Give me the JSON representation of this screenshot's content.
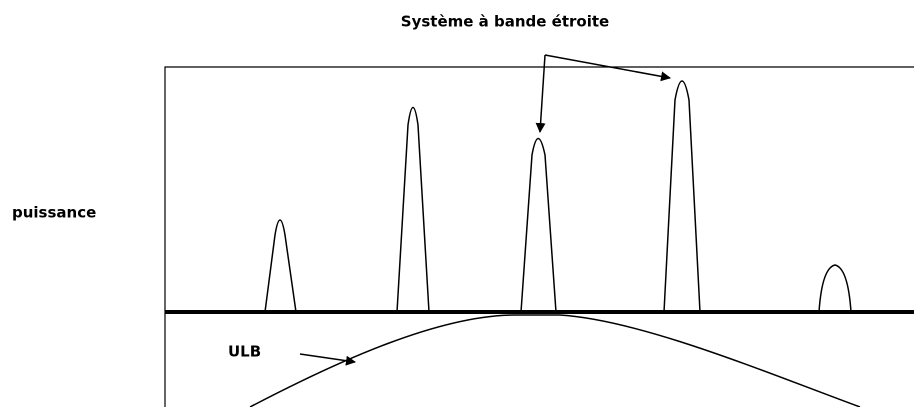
{
  "title": "Système à bande étroite",
  "y_label": "puissance",
  "ulb_label": "ULB"
}
